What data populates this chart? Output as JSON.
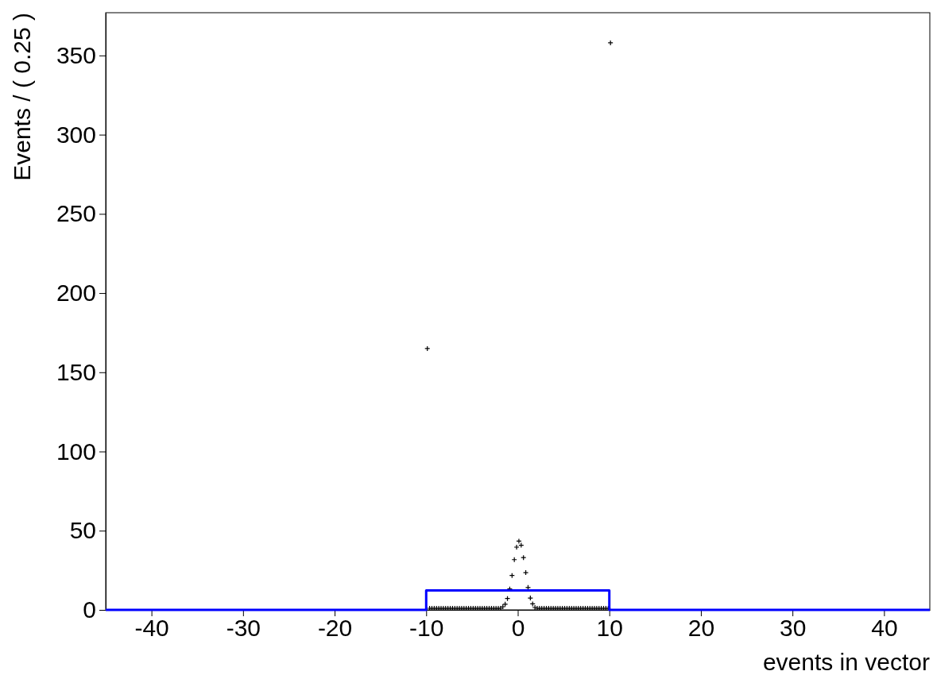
{
  "chart_data": {
    "type": "scatter",
    "xlabel": "events in vector",
    "ylabel": "Events / ( 0.25 )",
    "xlim": [
      -45,
      45
    ],
    "ylim": [
      0,
      377
    ],
    "xticks": [
      -40,
      -30,
      -20,
      -10,
      0,
      10,
      20,
      30,
      40
    ],
    "yticks": [
      0,
      50,
      100,
      150,
      200,
      250,
      300,
      350
    ],
    "grid": false,
    "series": [
      {
        "color": "#000000",
        "marker": "cross",
        "x": [
          -9.875,
          -9.625,
          -9.375,
          -9.125,
          -8.875,
          -8.625,
          -8.375,
          -8.125,
          -7.875,
          -7.625,
          -7.375,
          -7.125,
          -6.875,
          -6.625,
          -6.375,
          -6.125,
          -5.875,
          -5.625,
          -5.375,
          -5.125,
          -4.875,
          -4.625,
          -4.375,
          -4.125,
          -3.875,
          -3.625,
          -3.375,
          -3.125,
          -2.875,
          -2.625,
          -2.375,
          -2.125,
          -1.875,
          -1.625,
          -1.375,
          -1.125,
          -0.875,
          -0.625,
          -0.375,
          -0.125,
          0.125,
          0.375,
          0.625,
          0.875,
          1.125,
          1.375,
          1.625,
          1.875,
          2.125,
          2.375,
          2.625,
          2.875,
          3.125,
          3.375,
          3.625,
          3.875,
          4.125,
          4.375,
          4.625,
          4.875,
          5.125,
          5.375,
          5.625,
          5.875,
          6.125,
          6.375,
          6.625,
          6.875,
          7.125,
          7.375,
          7.625,
          7.875,
          8.125,
          8.375,
          8.625,
          8.875,
          9.125,
          9.375,
          9.625,
          9.875,
          10.125
        ],
        "values": [
          165,
          1,
          1,
          1,
          1,
          1,
          1,
          1,
          1,
          1,
          1,
          1,
          1,
          1,
          1,
          1,
          1,
          1,
          1,
          1,
          1,
          1,
          1,
          1,
          1,
          1,
          1,
          1,
          1,
          1,
          1,
          1,
          1,
          2,
          3.6,
          7.2,
          13.2,
          21.7,
          31.7,
          39.6,
          43.4,
          40.8,
          33,
          23.5,
          14.1,
          7.5,
          3.8,
          1.5,
          1,
          1,
          1,
          1,
          1,
          1,
          1,
          1,
          1,
          1,
          1,
          1,
          1,
          1,
          1,
          1,
          1,
          1,
          1,
          1,
          1,
          1,
          1,
          1,
          1,
          1,
          1,
          1,
          1,
          1,
          1,
          1,
          358
        ]
      },
      {
        "type": "line",
        "color": "#0000ff",
        "x": [
          -45,
          -10,
          -10,
          10,
          10,
          45
        ],
        "values": [
          0,
          0,
          12.3,
          12.3,
          0,
          0
        ]
      }
    ]
  }
}
